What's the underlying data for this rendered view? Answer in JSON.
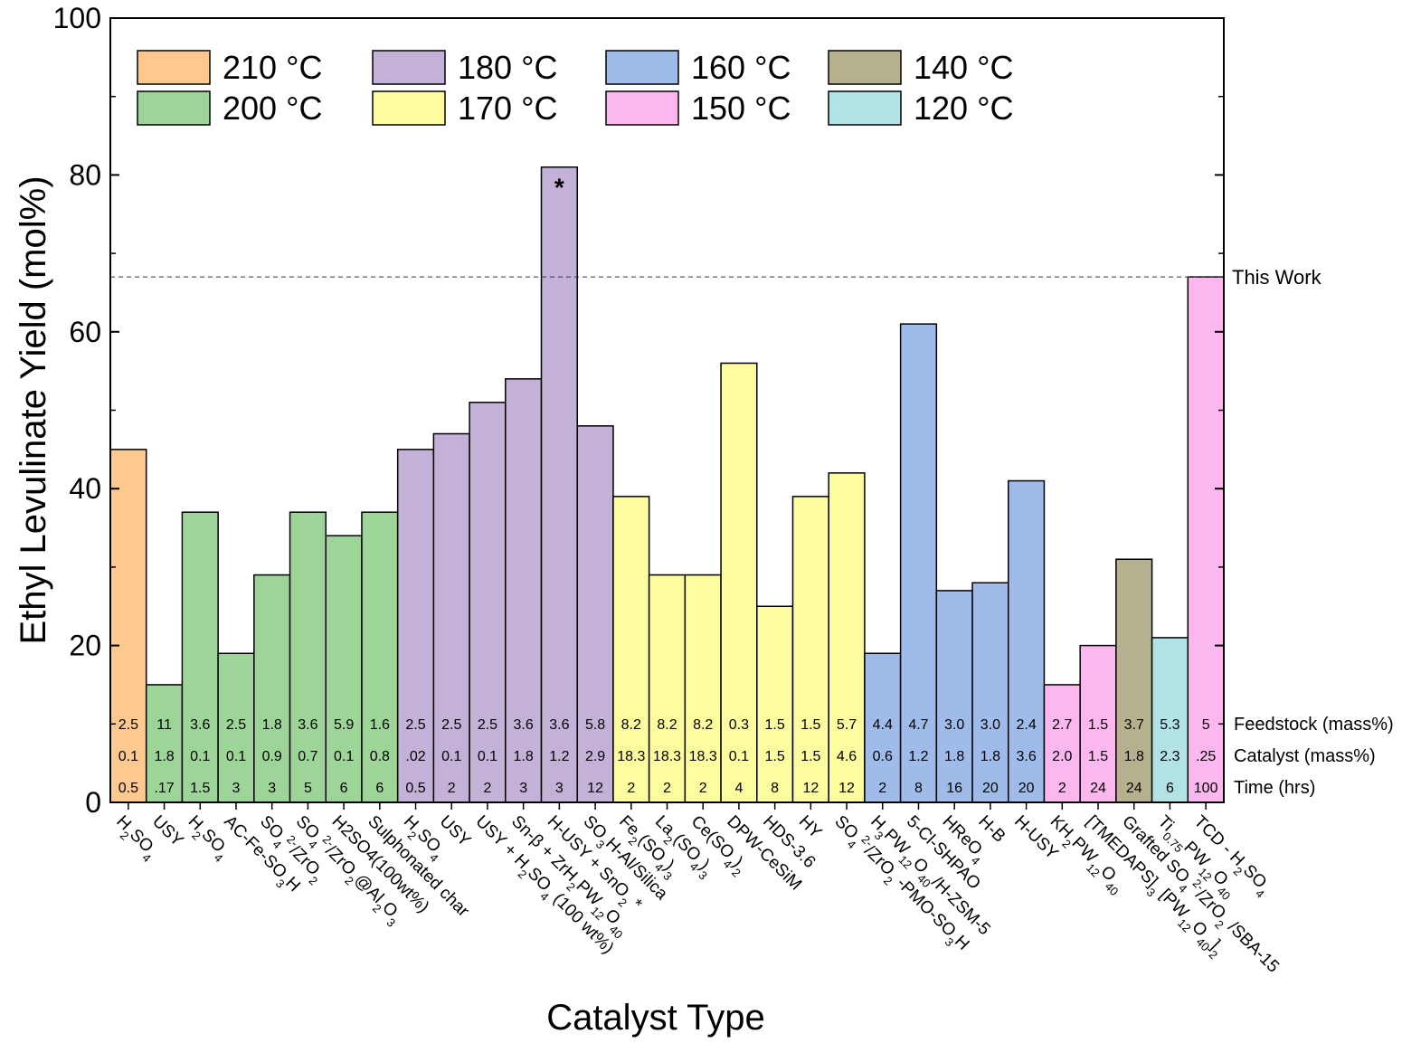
{
  "chart_data": {
    "type": "bar",
    "title": "",
    "xlabel": "Catalyst Type",
    "ylabel": "Ethyl Levulinate Yield (mol%)",
    "ylim": [
      0,
      100
    ],
    "yticks": [
      "0",
      "20",
      "40",
      "60",
      "80",
      "100"
    ],
    "grid": false,
    "legend_position": "top-left",
    "legend": [
      {
        "label": "210 °C",
        "color": "#fdc98f"
      },
      {
        "label": "180 °C",
        "color": "#c3b1d7"
      },
      {
        "label": "160 °C",
        "color": "#9ebbea"
      },
      {
        "label": "140 °C",
        "color": "#b5b08e"
      },
      {
        "label": "200 °C",
        "color": "#9dd598"
      },
      {
        "label": "170 °C",
        "color": "#fdfc9e"
      },
      {
        "label": "150 °C",
        "color": "#fcb7ef"
      },
      {
        "label": "120 °C",
        "color": "#b1e3e6"
      }
    ],
    "reference_line": {
      "value": 67,
      "label": "This Work"
    },
    "star_annotation": {
      "text": "*",
      "bar_index": 12
    },
    "row_labels": [
      "Feedstock (mass%)",
      "Catalyst (mass%)",
      "Time (hrs)"
    ],
    "bars": [
      {
        "label": "H$2SO$4",
        "value": 45,
        "temp": "210 °C",
        "feedstock": "2.5",
        "catalyst": "0.1",
        "time": "0.5"
      },
      {
        "label": "USY",
        "value": 15,
        "temp": "200 °C",
        "feedstock": "11",
        "catalyst": "1.8",
        "time": ".17"
      },
      {
        "label": "H$2SO$4",
        "value": 37,
        "temp": "200 °C",
        "feedstock": "3.6",
        "catalyst": "0.1",
        "time": "1.5"
      },
      {
        "label": "AC-Fe-SO$3H",
        "value": 19,
        "temp": "200 °C",
        "feedstock": "2.5",
        "catalyst": "0.1",
        "time": "3"
      },
      {
        "label": "SO$4^2-/ZrO$2",
        "value": 29,
        "temp": "200 °C",
        "feedstock": "1.8",
        "catalyst": "0.9",
        "time": "3"
      },
      {
        "label": "SO$4^2-/ZrO$2@Al$2O$3",
        "value": 37,
        "temp": "200 °C",
        "feedstock": "3.6",
        "catalyst": "0.7",
        "time": "5"
      },
      {
        "label": "H2SO4(100wt%)",
        "value": 34,
        "temp": "200 °C",
        "feedstock": "5.9",
        "catalyst": "0.1",
        "time": "6"
      },
      {
        "label": "Sulphonated char",
        "value": 37,
        "temp": "200 °C",
        "feedstock": "1.6",
        "catalyst": "0.8",
        "time": "6"
      },
      {
        "label": "H$2SO$4",
        "value": 45,
        "temp": "180 °C",
        "feedstock": "2.5",
        "catalyst": ".02",
        "time": "0.5"
      },
      {
        "label": "USY",
        "value": 47,
        "temp": "180 °C",
        "feedstock": "2.5",
        "catalyst": "0.1",
        "time": "2"
      },
      {
        "label": "USY + H$2SO$4 (100 wt%)",
        "value": 51,
        "temp": "180 °C",
        "feedstock": "2.5",
        "catalyst": "0.1",
        "time": "2"
      },
      {
        "label": "Sn-β + ZrH$2PW$12O$40",
        "value": 54,
        "temp": "180 °C",
        "feedstock": "3.6",
        "catalyst": "1.8",
        "time": "3"
      },
      {
        "label": "H-USY + SnO$2 *",
        "value": 81,
        "temp": "180 °C",
        "feedstock": "3.6",
        "catalyst": "1.2",
        "time": "3"
      },
      {
        "label": "SO$3H-Al/Silica",
        "value": 48,
        "temp": "180 °C",
        "feedstock": "5.8",
        "catalyst": "2.9",
        "time": "12"
      },
      {
        "label": "Fe$2(SO$4)$3",
        "value": 39,
        "temp": "170 °C",
        "feedstock": "8.2",
        "catalyst": "18.3",
        "time": "2"
      },
      {
        "label": "La$2(SO$4)$3",
        "value": 29,
        "temp": "170 °C",
        "feedstock": "8.2",
        "catalyst": "18.3",
        "time": "2"
      },
      {
        "label": "Ce(SO$4)$2",
        "value": 29,
        "temp": "170 °C",
        "feedstock": "8.2",
        "catalyst": "18.3",
        "time": "2"
      },
      {
        "label": "DPW-CeSiM",
        "value": 56,
        "temp": "170 °C",
        "feedstock": "0.3",
        "catalyst": "0.1",
        "time": "4"
      },
      {
        "label": "HDS-3.6",
        "value": 25,
        "temp": "170 °C",
        "feedstock": "1.5",
        "catalyst": "1.5",
        "time": "8"
      },
      {
        "label": "HY",
        "value": 39,
        "temp": "170 °C",
        "feedstock": "1.5",
        "catalyst": "1.5",
        "time": "12"
      },
      {
        "label": "SO$4^2-/ZrO$2 -PMO-SO$3H",
        "value": 42,
        "temp": "170 °C",
        "feedstock": "5.7",
        "catalyst": "4.6",
        "time": "12"
      },
      {
        "label": "H$3PW$12O$40/H-ZSM-5",
        "value": 19,
        "temp": "160 °C",
        "feedstock": "4.4",
        "catalyst": "0.6",
        "time": "2"
      },
      {
        "label": "5-Cl-SHPAO",
        "value": 61,
        "temp": "160 °C",
        "feedstock": "4.7",
        "catalyst": "1.2",
        "time": "8"
      },
      {
        "label": "HReO$4",
        "value": 27,
        "temp": "160 °C",
        "feedstock": "3.0",
        "catalyst": "1.8",
        "time": "16"
      },
      {
        "label": "H-B",
        "value": 28,
        "temp": "160 °C",
        "feedstock": "3.0",
        "catalyst": "1.8",
        "time": "20"
      },
      {
        "label": "H-USY",
        "value": 41,
        "temp": "160 °C",
        "feedstock": "2.4",
        "catalyst": "3.6",
        "time": "20"
      },
      {
        "label": "KH$2PW$12O$40",
        "value": 15,
        "temp": "150 °C",
        "feedstock": "2.7",
        "catalyst": "2.0",
        "time": "2"
      },
      {
        "label": "[TMEDAPS]$3 [PW$12O$40]$2",
        "value": 20,
        "temp": "150 °C",
        "feedstock": "1.5",
        "catalyst": "1.5",
        "time": "24"
      },
      {
        "label": "Grafted SO$4^2-/ZrO$2 /SBA-15",
        "value": 31,
        "temp": "140 °C",
        "feedstock": "3.7",
        "catalyst": "1.8",
        "time": "24"
      },
      {
        "label": "Ti$0.75PW$12O$40",
        "value": 21,
        "temp": "120 °C",
        "feedstock": "5.3",
        "catalyst": "2.3",
        "time": "6"
      },
      {
        "label": "TCD - H$2SO$4",
        "value": 67,
        "temp": "150 °C",
        "feedstock": "5",
        "catalyst": ".25",
        "time": "100"
      }
    ]
  }
}
